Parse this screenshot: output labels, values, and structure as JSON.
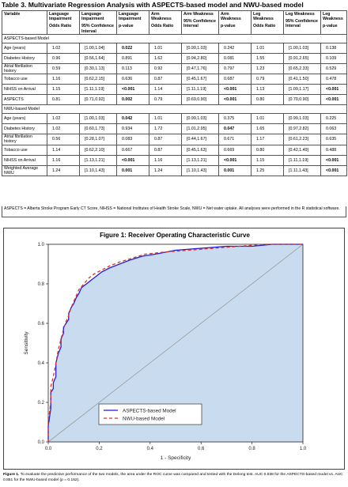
{
  "table": {
    "title": "Table 3. Multivariate Regression Analysis with ASPECTS-based model and NWU-based model",
    "header_variable": "Variable",
    "header_groups": [
      {
        "top": "Language Impairment",
        "sub": "Odds Ratio"
      },
      {
        "top": "Language Impairment",
        "sub": "95% Confidence Interval"
      },
      {
        "top": "Language Impairment",
        "sub": "p-value"
      },
      {
        "top": "Arm Weakness",
        "sub": "Odds Ratio"
      },
      {
        "top": "Arm Weakness",
        "sub": "95% Confidence Interval"
      },
      {
        "top": "Arm Weakness",
        "sub": "p-value"
      },
      {
        "top": "Leg Weakness",
        "sub": "Odds Ratio"
      },
      {
        "top": "Leg Weakness",
        "sub": "95% Confidence Interval"
      },
      {
        "top": "Leg Weakness",
        "sub": "p-value"
      }
    ],
    "sections": [
      {
        "name": "ASPECTS-based Model",
        "rows": [
          {
            "variable": "Age (years)",
            "cells": [
              "1.02",
              "[1.00,1.04]",
              "0.022",
              "1.01",
              "[0.99,1.03]",
              "0.242",
              "1.01",
              "[1.00,1.03]",
              "0.138"
            ],
            "bold": [
              2
            ]
          },
          {
            "variable": "Diabetes History",
            "cells": [
              "0.96",
              "[0.56,1.64]",
              "0.891",
              "1.62",
              "[0.94,2.80]",
              "0.081",
              "1.55",
              "[0.91,2.65]",
              "0.109"
            ],
            "bold": []
          },
          {
            "variable": "Atrial fibrillation history",
            "cells": [
              "0.59",
              "[0.30,1.13]",
              "0.113",
              "0.92",
              "[0.47,1.76]",
              "0.797",
              "1.23",
              "[0.65,2.33]",
              "0.529"
            ],
            "bold": []
          },
          {
            "variable": "Tobacco use",
            "cells": [
              "1.16",
              "[0.62,2.15]",
              "0.636",
              "0.87",
              "[0.45,1.67]",
              "0.687",
              "0.79",
              "[0.41,1.50]",
              "0.478"
            ],
            "bold": []
          },
          {
            "variable": "NIHSS on Arrival",
            "cells": [
              "1.15",
              "[1.11,1.19]",
              "<0.001",
              "1.14",
              "[1.11,1.19]",
              "<0.001",
              "1.13",
              "[1.09,1.17]",
              "<0.001"
            ],
            "bold": [
              2,
              5,
              8
            ]
          },
          {
            "variable": "ASPECTS",
            "cells": [
              "0.81",
              "[0.71,0.92]",
              "0.002",
              "0.79",
              "[0.69,0.90]",
              "<0.001",
              "0.80",
              "[0.70,0.90]",
              "<0.001"
            ],
            "bold": [
              2,
              5,
              8
            ]
          }
        ]
      },
      {
        "name": "NWU-based Model",
        "rows": [
          {
            "variable": "Age (years)",
            "cells": [
              "1.02",
              "[1.00,1.03]",
              "0.042",
              "1.01",
              "[0.99,1.03]",
              "0.375",
              "1.01",
              "[0.99,1.03]",
              "0.225"
            ],
            "bold": [
              2
            ]
          },
          {
            "variable": "Diabetes History",
            "cells": [
              "1.02",
              "[0.60,1.73]",
              "0.934",
              "1.72",
              "[1.01,2.95]",
              "0.047",
              "1.65",
              "[0.97,2.82]",
              "0.063"
            ],
            "bold": [
              5
            ]
          },
          {
            "variable": "Atrial fibrillation history",
            "cells": [
              "0.56",
              "[0.28,1.07]",
              "0.083",
              "0.87",
              "[0.44,1.67]",
              "0.671",
              "1.17",
              "[0.61,2.23]",
              "0.635"
            ],
            "bold": []
          },
          {
            "variable": "Tobacco use",
            "cells": [
              "1.14",
              "[0.62,2.10]",
              "0.667",
              "0.87",
              "[0.45,1.63]",
              "0.669",
              "0.80",
              "[0.42,1.49]",
              "0.488"
            ],
            "bold": []
          },
          {
            "variable": "NIHSS on Arrival",
            "cells": [
              "1.16",
              "[1.13,1.21]",
              "<0.001",
              "1.16",
              "[1.13,1.21]",
              "<0.001",
              "1.15",
              "[1.11,1.19]",
              "<0.001"
            ],
            "bold": [
              2,
              5,
              8
            ]
          },
          {
            "variable": "Weighted Average NWU",
            "cells": [
              "1.24",
              "[1.10,1.43]",
              "0.001",
              "1.24",
              "[1.10,1.43]",
              "0.001",
              "1.25",
              "[1.11,1.43]",
              "<0.001"
            ],
            "bold": [
              2,
              5,
              8
            ]
          }
        ]
      }
    ],
    "footnote": "ASPECTS = Alberta Stroke Program Early CT Score, NIHSS = National Institutes of Health Stroke Scale, NWU = Net water uptake. All analyses were performed in the R statistical software."
  },
  "figure": {
    "title": "Figure 1: Receiver Operating Characteristic Curve",
    "caption_lead": "Figure 1.",
    "caption_text": " To evaluate the predictive performance of the two models, the area under the ROC curve was compared and tested with the Delong test. AUC 0.838 for the ASPECTS-based model vs. AUC 0.851 for the NWU-based model (p = 0.152)."
  },
  "chart_data": {
    "type": "line",
    "title": "Figure 1: Receiver Operating Characteristic Curve",
    "xlabel": "1 - Specificity",
    "ylabel": "Sensitivity",
    "xlim": [
      0,
      1
    ],
    "ylim": [
      0,
      1
    ],
    "x_ticks": [
      "0.0",
      "0.2",
      "0.4",
      "0.6",
      "0.8",
      "1.0"
    ],
    "y_ticks": [
      "0.0",
      "0.2",
      "0.4",
      "0.6",
      "0.8",
      "1.0"
    ],
    "grid": false,
    "legend_position": "bottom-center",
    "reference_line": {
      "x": [
        0,
        1
      ],
      "y": [
        0,
        1
      ],
      "color": "#9a9a9a"
    },
    "fill_color": "#c9dcef",
    "series": [
      {
        "name": "ASPECTS-based Model",
        "color": "#1f1fd6",
        "style": "solid",
        "x": [
          0.0,
          0.0,
          0.01,
          0.01,
          0.02,
          0.02,
          0.03,
          0.03,
          0.04,
          0.05,
          0.05,
          0.06,
          0.06,
          0.07,
          0.08,
          0.08,
          0.09,
          0.1,
          0.11,
          0.12,
          0.13,
          0.15,
          0.17,
          0.19,
          0.21,
          0.24,
          0.28,
          0.32,
          0.37,
          0.42,
          0.5,
          0.6,
          0.7,
          0.8,
          0.88,
          1.0
        ],
        "y": [
          0.0,
          0.08,
          0.17,
          0.25,
          0.27,
          0.3,
          0.33,
          0.4,
          0.45,
          0.48,
          0.52,
          0.55,
          0.58,
          0.6,
          0.62,
          0.65,
          0.68,
          0.7,
          0.73,
          0.75,
          0.78,
          0.8,
          0.82,
          0.84,
          0.86,
          0.88,
          0.9,
          0.92,
          0.94,
          0.95,
          0.97,
          0.98,
          0.99,
          0.99,
          1.0,
          1.0
        ]
      },
      {
        "name": "NWU-based Model",
        "color": "#e0302a",
        "style": "dashed",
        "x": [
          0.0,
          0.0,
          0.01,
          0.01,
          0.02,
          0.03,
          0.04,
          0.05,
          0.06,
          0.07,
          0.08,
          0.09,
          0.1,
          0.11,
          0.12,
          0.14,
          0.16,
          0.18,
          0.21,
          0.24,
          0.28,
          0.33,
          0.38,
          0.45,
          0.55,
          0.65,
          0.75,
          0.85,
          1.0
        ],
        "y": [
          0.0,
          0.1,
          0.2,
          0.28,
          0.33,
          0.4,
          0.47,
          0.52,
          0.57,
          0.61,
          0.64,
          0.68,
          0.71,
          0.74,
          0.77,
          0.8,
          0.83,
          0.85,
          0.87,
          0.89,
          0.91,
          0.93,
          0.95,
          0.96,
          0.97,
          0.98,
          0.99,
          1.0,
          1.0
        ]
      }
    ]
  }
}
